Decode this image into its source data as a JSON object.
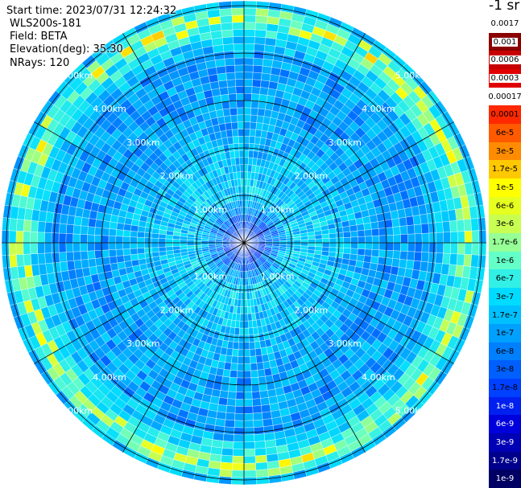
{
  "header": {
    "start_time": "Start time: 2023/07/31 12:24:32",
    "instrument": "WLS200s-181",
    "field": "Field: BETA",
    "elevation": "Elevation(deg): 35.30",
    "nrays": "NRays: 120"
  },
  "chart_data": {
    "type": "heatmap",
    "projection": "polar-ppi",
    "field": "BETA",
    "elevation_deg": 35.3,
    "n_rays": 120,
    "range_rings_km": [
      1,
      2,
      3,
      4,
      5
    ],
    "ring_labels": [
      "1.00km",
      "2.00km",
      "3.00km",
      "4.00km",
      "5.00km"
    ],
    "max_range_km": 5.1,
    "radial_spokes_deg": [
      0,
      30,
      60,
      90,
      120,
      150,
      180,
      210,
      240,
      270,
      300,
      330
    ],
    "colorbar": {
      "unit_label": "-1 sr",
      "scale": "log",
      "labels": [
        "0.0017",
        "0.001",
        "0.0006",
        "0.0003",
        "0.00017",
        "0.0001",
        "6e-5",
        "3e-5",
        "1.7e-5",
        "1e-5",
        "6e-6",
        "3e-6",
        "1.7e-6",
        "1e-6",
        "6e-7",
        "3e-7",
        "1.7e-7",
        "1e-7",
        "6e-8",
        "3e-8",
        "1.7e-8",
        "1e-8",
        "6e-9",
        "3e-9",
        "1.7e-9",
        "1e-9"
      ],
      "colors": [
        "#ffffff",
        "#8b0000",
        "#c80000",
        "#e00000",
        "#ffffff",
        "#ff2800",
        "#ff5a00",
        "#ff8c00",
        "#ffc800",
        "#ffff00",
        "#e6ff1e",
        "#c8ff50",
        "#96ff96",
        "#64ffc8",
        "#32f0e6",
        "#00dcff",
        "#00c0ff",
        "#00a0ff",
        "#0080ff",
        "#0060ff",
        "#0040ff",
        "#0020f0",
        "#0000dc",
        "#0000b4",
        "#00008c",
        "#000064"
      ]
    },
    "approx_profile": [
      {
        "range_km": 0.3,
        "beta": "1e-8"
      },
      {
        "range_km": 1.0,
        "beta": "1.7e-7"
      },
      {
        "range_km": 2.0,
        "beta": "1e-7"
      },
      {
        "range_km": 3.0,
        "beta": "6e-8"
      },
      {
        "range_km": 4.0,
        "beta": "6e-8"
      },
      {
        "range_km": 4.8,
        "beta": "1e-6"
      },
      {
        "range_km": 5.0,
        "beta": "1e-7"
      }
    ]
  }
}
